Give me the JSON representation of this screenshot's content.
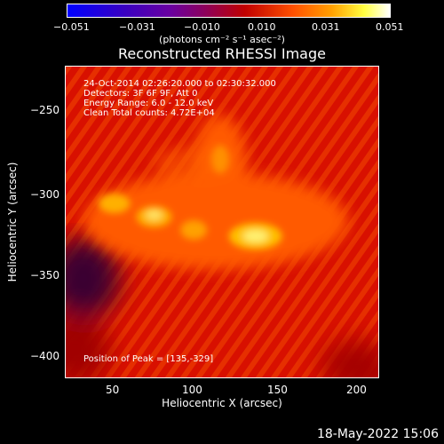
{
  "colorbar": {
    "ticks": [
      "−0.051",
      "−0.031",
      "−0.010",
      "0.010",
      "0.031",
      "0.051"
    ],
    "units": "(photons cm⁻² s⁻¹ asec⁻²)"
  },
  "title": "Reconstructed RHESSI Image",
  "info": {
    "line1": "24-Oct-2014 02:26:20.000 to 02:30:32.000",
    "line2": "Detectors: 3F 6F 9F, Att 0",
    "line3": "Energy Range: 6.0 - 12.0 keV",
    "line4": "Clean     Total counts: 4.72E+04",
    "peak": "Position of Peak = [135,-329]"
  },
  "axes": {
    "xlabel": "Heliocentric X (arcsec)",
    "ylabel": "Heliocentric Y (arcsec)",
    "xticks": [
      "50",
      "100",
      "150",
      "200"
    ],
    "yticks": [
      "−250",
      "−300",
      "−350",
      "−400"
    ]
  },
  "timestamp": "18-May-2022 15:06"
}
